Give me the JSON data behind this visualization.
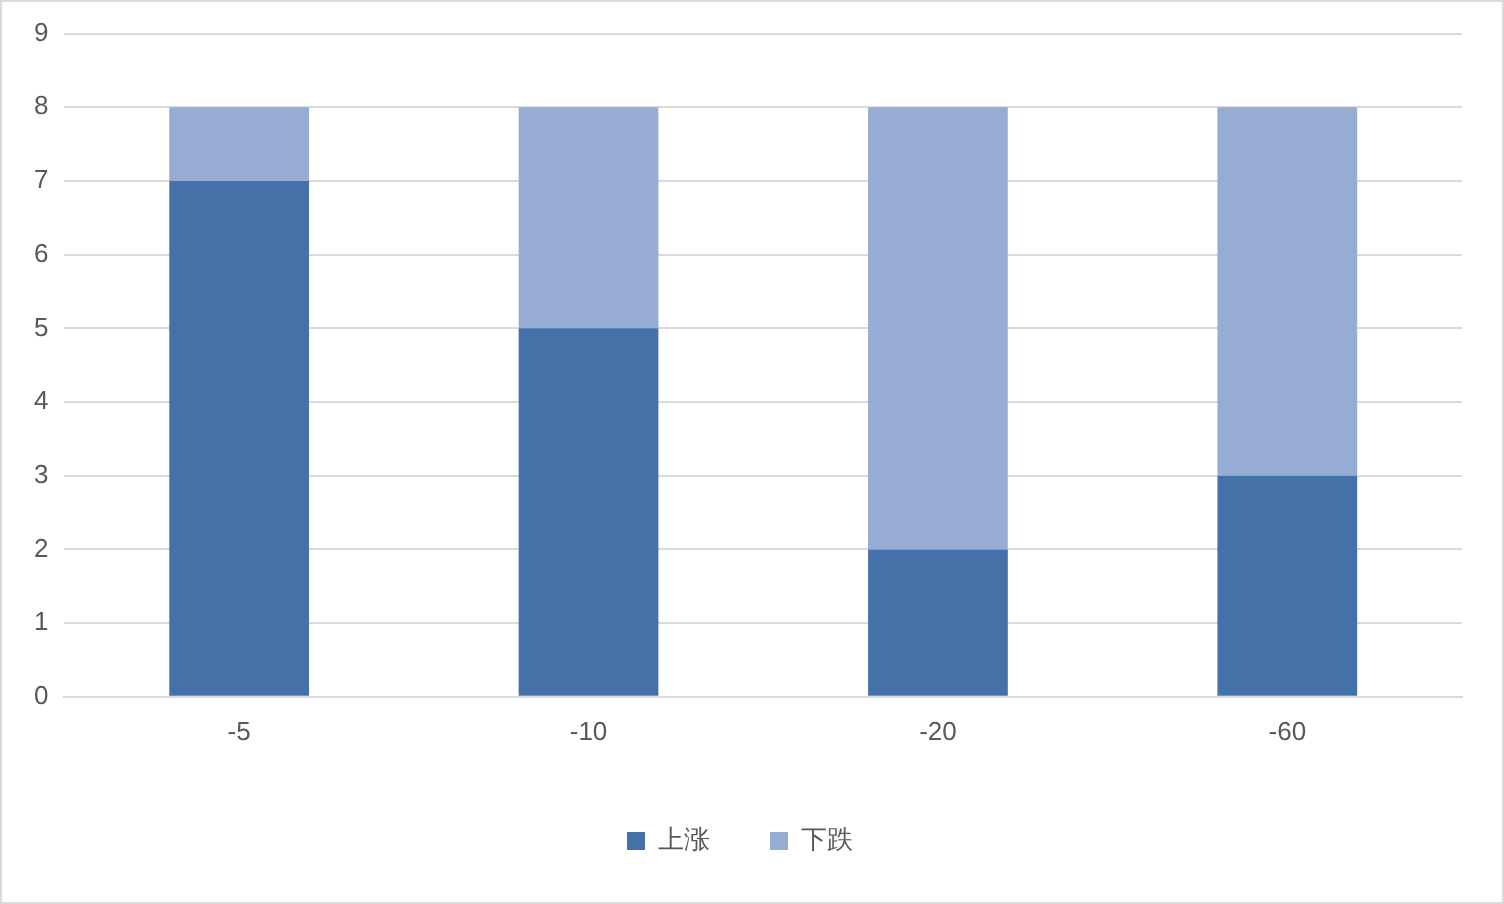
{
  "chart_data": {
    "type": "bar",
    "stacked": true,
    "categories": [
      "-5",
      "-10",
      "-20",
      "-60"
    ],
    "series": [
      {
        "name": "上涨",
        "color": "#4472a8",
        "values": [
          7,
          5,
          2,
          3
        ]
      },
      {
        "name": "下跌",
        "color": "#97acd3",
        "values": [
          1,
          3,
          6,
          5
        ]
      }
    ],
    "ylim": [
      0,
      9
    ],
    "yticks": [
      0,
      1,
      2,
      3,
      4,
      5,
      6,
      7,
      8,
      9
    ],
    "grid": "y",
    "legend": "bottom"
  }
}
